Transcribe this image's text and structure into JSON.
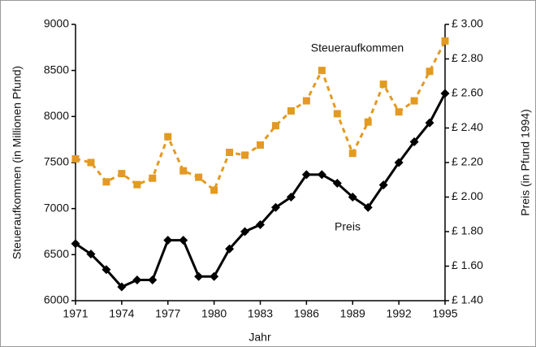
{
  "chart_data": {
    "type": "line",
    "xlabel": "Jahr",
    "ylabel": "Steueraufkommen (in Millionen Pfund)",
    "y2label": "Preis (in Pfund 1994)",
    "x": [
      1971,
      1972,
      1973,
      1974,
      1975,
      1976,
      1977,
      1978,
      1979,
      1980,
      1981,
      1982,
      1983,
      1984,
      1985,
      1986,
      1987,
      1988,
      1989,
      1990,
      1991,
      1992,
      1993,
      1994,
      1995
    ],
    "xlim": [
      1971,
      1995
    ],
    "xticks": [
      1971,
      1974,
      1977,
      1980,
      1983,
      1986,
      1989,
      1992,
      1995
    ],
    "ylim": [
      6000,
      9000
    ],
    "yticks": [
      6000,
      6500,
      7000,
      7500,
      8000,
      8500,
      9000
    ],
    "y2lim": [
      1.4,
      3.0
    ],
    "y2ticks": [
      {
        "value": 1.4,
        "label": "£ 1.40"
      },
      {
        "value": 1.6,
        "label": "£ 1.60"
      },
      {
        "value": 1.8,
        "label": "£ 1.80"
      },
      {
        "value": 2.0,
        "label": "£ 2.00"
      },
      {
        "value": 2.2,
        "label": "£ 2.20"
      },
      {
        "value": 2.4,
        "label": "£ 2.40"
      },
      {
        "value": 2.6,
        "label": "£ 2.60"
      },
      {
        "value": 2.8,
        "label": "£ 2.80"
      },
      {
        "value": 3.0,
        "label": "£ 3.00"
      }
    ],
    "grid": false,
    "series": [
      {
        "name": "Steueraufkommen",
        "color": "#e39a22",
        "axis": "y",
        "dashed": true,
        "marker": "square",
        "values": [
          7540,
          7500,
          7290,
          7380,
          7260,
          7330,
          7780,
          7410,
          7340,
          7200,
          7610,
          7580,
          7690,
          7900,
          8060,
          8170,
          8500,
          8030,
          7600,
          7940,
          8350,
          8050,
          8170,
          8490,
          8820
        ]
      },
      {
        "name": "Preis",
        "color": "#000000",
        "axis": "y2",
        "dashed": false,
        "marker": "diamond",
        "values": [
          1.73,
          1.67,
          1.58,
          1.48,
          1.52,
          1.52,
          1.75,
          1.75,
          1.54,
          1.54,
          1.7,
          1.8,
          1.84,
          1.94,
          2.0,
          2.13,
          2.13,
          2.08,
          2.0,
          1.94,
          2.07,
          2.2,
          2.32,
          2.43,
          2.6
        ]
      }
    ]
  }
}
